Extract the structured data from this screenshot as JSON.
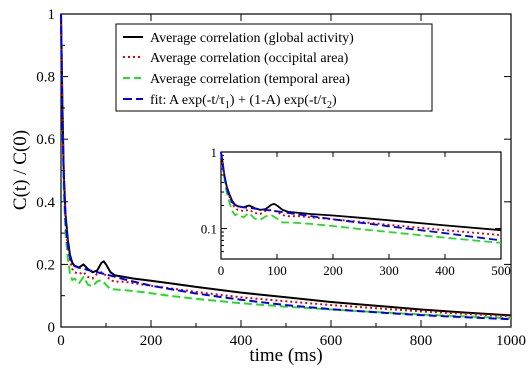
{
  "chart_data": {
    "type": "line",
    "xlabel": "time (ms)",
    "ylabel": "C(t) / C(0)",
    "xlim": [
      0,
      1000
    ],
    "ylim": [
      0,
      1
    ],
    "x_ticks": [
      0,
      200,
      400,
      600,
      800,
      1000
    ],
    "x_tick_labels": [
      "0",
      "200",
      "400",
      "600",
      "800",
      "1000"
    ],
    "y_ticks": [
      0,
      0.2,
      0.4,
      0.6,
      0.8,
      1
    ],
    "y_tick_labels": [
      "0",
      "0.2",
      "0.4",
      "0.6",
      "0.8",
      "1"
    ],
    "legend_position": "top-right",
    "legend": [
      {
        "text": "Average correlation (global activity)",
        "color": "#000000",
        "style": "solid"
      },
      {
        "text": "Average correlation (occipital area)",
        "color": "#e00000",
        "style": "dotted"
      },
      {
        "text": "Average correlation (temporal area)",
        "color": "#22dd22",
        "style": "dashed"
      },
      {
        "text": "fit: A exp(-t/τ1) + (1-A) exp(-t/τ2)",
        "text_parts": [
          "fit: A exp(-t/τ",
          "1",
          ") + (1-A) exp(-t/τ",
          "2",
          ")"
        ],
        "color": "#0000ee",
        "style": "dashed"
      }
    ],
    "series": [
      {
        "name": "Average correlation (global activity)",
        "color": "#000000",
        "style": "solid",
        "x": [
          0,
          3,
          6,
          10,
          15,
          20,
          25,
          30,
          40,
          50,
          60,
          70,
          80,
          90,
          95,
          100,
          110,
          120,
          140,
          160,
          200,
          250,
          300,
          400,
          500,
          600,
          700,
          800,
          900,
          1000
        ],
        "y": [
          1.0,
          0.72,
          0.5,
          0.36,
          0.28,
          0.23,
          0.205,
          0.195,
          0.19,
          0.2,
          0.185,
          0.175,
          0.18,
          0.205,
          0.21,
          0.2,
          0.175,
          0.165,
          0.16,
          0.155,
          0.148,
          0.138,
          0.128,
          0.11,
          0.095,
          0.08,
          0.068,
          0.056,
          0.046,
          0.037
        ]
      },
      {
        "name": "Average correlation (occipital area)",
        "color": "#e00000",
        "style": "dotted",
        "x": [
          0,
          3,
          6,
          10,
          15,
          20,
          25,
          30,
          40,
          50,
          60,
          70,
          80,
          90,
          100,
          110,
          120,
          140,
          160,
          200,
          250,
          300,
          400,
          500,
          600,
          700,
          800,
          900,
          1000
        ],
        "y": [
          1.0,
          0.7,
          0.48,
          0.34,
          0.26,
          0.21,
          0.185,
          0.175,
          0.17,
          0.175,
          0.16,
          0.155,
          0.17,
          0.175,
          0.165,
          0.15,
          0.145,
          0.145,
          0.14,
          0.132,
          0.122,
          0.112,
          0.095,
          0.082,
          0.07,
          0.06,
          0.05,
          0.042,
          0.034
        ]
      },
      {
        "name": "Average correlation (temporal area)",
        "color": "#22dd22",
        "style": "dashed",
        "x": [
          0,
          3,
          6,
          10,
          15,
          20,
          25,
          30,
          40,
          50,
          60,
          70,
          80,
          90,
          100,
          110,
          120,
          140,
          160,
          200,
          250,
          300,
          400,
          500,
          600,
          700,
          800,
          900,
          1000
        ],
        "y": [
          1.0,
          0.68,
          0.45,
          0.3,
          0.22,
          0.17,
          0.15,
          0.155,
          0.14,
          0.16,
          0.135,
          0.13,
          0.145,
          0.15,
          0.135,
          0.12,
          0.12,
          0.118,
          0.115,
          0.108,
          0.098,
          0.09,
          0.076,
          0.065,
          0.056,
          0.048,
          0.04,
          0.034,
          0.028
        ]
      },
      {
        "name": "fit: A exp(-t/τ1) + (1-A) exp(-t/τ2)",
        "color": "#0000ee",
        "style": "dashed",
        "fit": {
          "A": 0.8,
          "tau1": 6,
          "tau2": 480
        },
        "x": [
          0,
          2,
          4,
          6,
          8,
          10,
          12,
          15,
          20,
          25,
          30,
          40,
          50,
          60,
          80,
          100,
          150,
          200,
          300,
          400,
          500,
          600,
          700,
          800,
          900,
          1000
        ],
        "y": [
          1.0,
          0.773,
          0.61,
          0.494,
          0.41,
          0.35,
          0.307,
          0.262,
          0.221,
          0.204,
          0.196,
          0.189,
          0.186,
          0.182,
          0.175,
          0.168,
          0.149,
          0.132,
          0.107,
          0.087,
          0.07,
          0.057,
          0.047,
          0.038,
          0.031,
          0.025
        ]
      }
    ],
    "inset": {
      "type": "line",
      "yscale": "log",
      "xlim": [
        0,
        500
      ],
      "ylim": [
        0.04,
        1
      ],
      "x_ticks": [
        0,
        100,
        200,
        300,
        400,
        500
      ],
      "x_tick_labels": [
        "0",
        "100",
        "200",
        "300",
        "400",
        "500"
      ],
      "y_ticks": [
        0.1,
        1
      ],
      "y_tick_labels": [
        "0.1",
        "1"
      ],
      "position": "center-right"
    }
  }
}
